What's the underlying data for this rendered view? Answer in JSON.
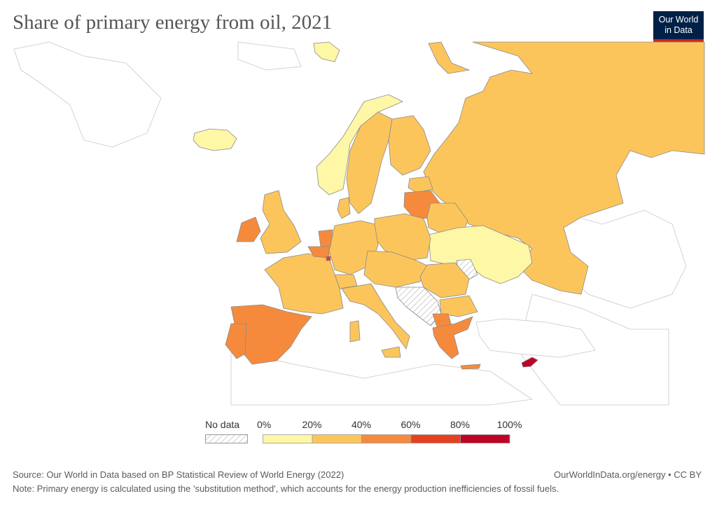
{
  "header": {
    "title": "Share of primary energy from oil, 2021",
    "logo_line1": "Our World",
    "logo_line2": "in Data"
  },
  "legend": {
    "no_data_label": "No data",
    "ticks": [
      "0%",
      "20%",
      "40%",
      "60%",
      "80%",
      "100%"
    ],
    "bins": [
      {
        "from": 0,
        "to": 20,
        "color": "#fef7a6"
      },
      {
        "from": 20,
        "to": 40,
        "color": "#fcc55c"
      },
      {
        "from": 40,
        "to": 60,
        "color": "#f68a3c"
      },
      {
        "from": 60,
        "to": 80,
        "color": "#e5401f"
      },
      {
        "from": 80,
        "to": 100,
        "color": "#bf0426"
      }
    ],
    "no_data_color": "#e0e0e0"
  },
  "colors": {
    "bin_0_20": "#fef7a6",
    "bin_20_40": "#fcc55c",
    "bin_40_60": "#f68a3c",
    "bin_60_80": "#e5401f",
    "bin_80_100": "#bf0426",
    "outline": "#8a8a8a",
    "background_land": "#ffffff"
  },
  "footer": {
    "source": "Source: Our World in Data based on BP Statistical Review of World Energy (2022)",
    "license": "OurWorldInData.org/energy • CC BY",
    "note": "Note: Primary energy is calculated using the 'substitution method', which accounts for the energy production inefficiencies of fossil fuels."
  }
}
